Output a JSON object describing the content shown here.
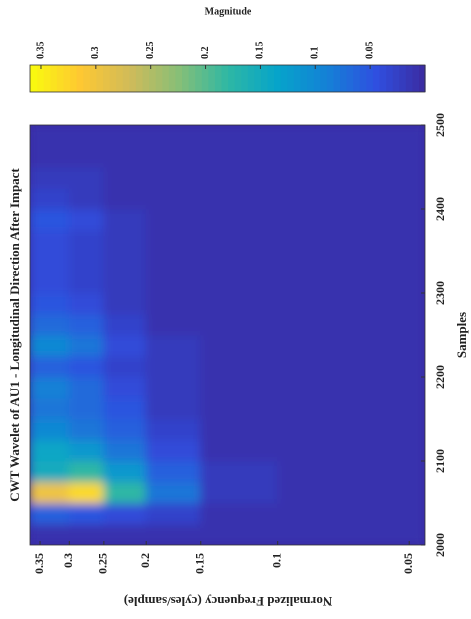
{
  "chart_data": {
    "type": "heatmap",
    "title": "CWT Wavelet of AU1 - Longitudinal Direction After Impact",
    "x_label": "Samples",
    "y_label": "Normalized Frequency (cyles/sample)",
    "colorbar_label": "Magnitude",
    "y_scale": "log",
    "x_edges": [
      2000,
      2025,
      2050,
      2075,
      2100,
      2125,
      2150,
      2175,
      2200,
      2225,
      2250,
      2275,
      2300,
      2325,
      2350,
      2375,
      2400,
      2425,
      2450,
      2475,
      2500
    ],
    "y_edges": [
      0.369,
      0.3,
      0.25,
      0.2,
      0.15,
      0.1,
      0.046
    ],
    "values": [
      [
        0.01,
        0.06,
        0.3,
        0.15,
        0.14,
        0.1,
        0.08,
        0.09,
        0.06,
        0.1,
        0.07,
        0.05,
        0.04,
        0.04,
        0.04,
        0.05,
        0.03,
        0.02,
        0.01,
        0.01
      ],
      [
        0.01,
        0.05,
        0.33,
        0.18,
        0.12,
        0.08,
        0.07,
        0.07,
        0.05,
        0.08,
        0.06,
        0.04,
        0.03,
        0.03,
        0.03,
        0.04,
        0.02,
        0.02,
        0.01,
        0.01
      ],
      [
        0.01,
        0.04,
        0.18,
        0.12,
        0.08,
        0.06,
        0.05,
        0.04,
        0.03,
        0.04,
        0.03,
        0.02,
        0.02,
        0.02,
        0.02,
        0.02,
        0.01,
        0.01,
        0.01,
        0.01
      ],
      [
        0.01,
        0.03,
        0.08,
        0.06,
        0.04,
        0.03,
        0.02,
        0.02,
        0.02,
        0.02,
        0.01,
        0.01,
        0.01,
        0.01,
        0.01,
        0.01,
        0.01,
        0.01,
        0.01,
        0.01
      ],
      [
        0.01,
        0.01,
        0.02,
        0.02,
        0.01,
        0.01,
        0.01,
        0.01,
        0.01,
        0.01,
        0.01,
        0.01,
        0.01,
        0.01,
        0.01,
        0.01,
        0.01,
        0.01,
        0.01,
        0.01
      ],
      [
        0.01,
        0.01,
        0.01,
        0.01,
        0.01,
        0.01,
        0.01,
        0.01,
        0.01,
        0.01,
        0.01,
        0.01,
        0.01,
        0.01,
        0.01,
        0.01,
        0.01,
        0.01,
        0.01,
        0.01
      ]
    ],
    "xlim": [
      2000,
      2500
    ],
    "xticks": [
      2000,
      2100,
      2200,
      2300,
      2400,
      2500
    ],
    "ylim": [
      0.046,
      0.369
    ],
    "yticks": [
      0.05,
      0.1,
      0.15,
      0.2,
      0.25,
      0.3,
      0.35
    ],
    "clim": [
      0,
      0.36
    ],
    "cticks": [
      0.05,
      0.1,
      0.15,
      0.2,
      0.25,
      0.3,
      0.35
    ],
    "colormap": [
      "#3b2ba0",
      "#2f4fe0",
      "#1481d6",
      "#06a4ca",
      "#2eb7a4",
      "#87bf77",
      "#d1bb59",
      "#fec832",
      "#f9fb0e"
    ]
  }
}
